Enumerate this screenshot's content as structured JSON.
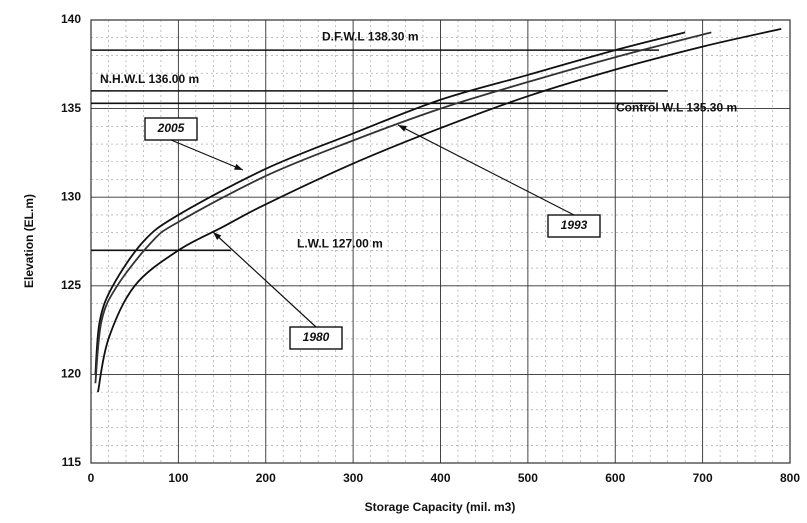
{
  "chart_data": {
    "type": "line",
    "xlabel": "Storage Capacity (mil. m3)",
    "ylabel": "Elevation (EL.m)",
    "xlim": [
      0,
      800
    ],
    "xticks": [
      0,
      100,
      200,
      300,
      400,
      500,
      600,
      700,
      800
    ],
    "ylim": [
      115,
      140
    ],
    "yticks": [
      115,
      120,
      125,
      130,
      135,
      140
    ],
    "grid": true,
    "series": [
      {
        "name": "2005",
        "color": "#111111",
        "x": [
          5,
          10,
          25,
          60,
          100,
          200,
          300,
          400,
          500,
          600,
          680
        ],
        "values": [
          120,
          123,
          125,
          127.5,
          129,
          131.6,
          133.6,
          135.5,
          136.9,
          138.3,
          139.3
        ]
      },
      {
        "name": "1993",
        "color": "#333333",
        "x": [
          5,
          12,
          30,
          70,
          100,
          200,
          300,
          400,
          500,
          600,
          710
        ],
        "values": [
          119.5,
          123,
          125,
          127.5,
          128.6,
          131.2,
          133.2,
          135,
          136.5,
          137.9,
          139.3
        ]
      },
      {
        "name": "1980",
        "color": "#111111",
        "x": [
          8,
          20,
          50,
          100,
          150,
          200,
          300,
          400,
          500,
          600,
          700,
          790
        ],
        "values": [
          119,
          122,
          125,
          127,
          128.3,
          129.6,
          131.9,
          133.9,
          135.7,
          137.2,
          138.5,
          139.5
        ]
      }
    ],
    "reference_lines": [
      {
        "label": "D.F.W.L 138.30 m",
        "value": 138.3
      },
      {
        "label": "N.H.W.L 136.00 m",
        "value": 136
      },
      {
        "label": "Control W.L 135.30 m",
        "value": 135.3
      },
      {
        "label": "L.W.L 127.00 m",
        "value": 127
      }
    ]
  }
}
